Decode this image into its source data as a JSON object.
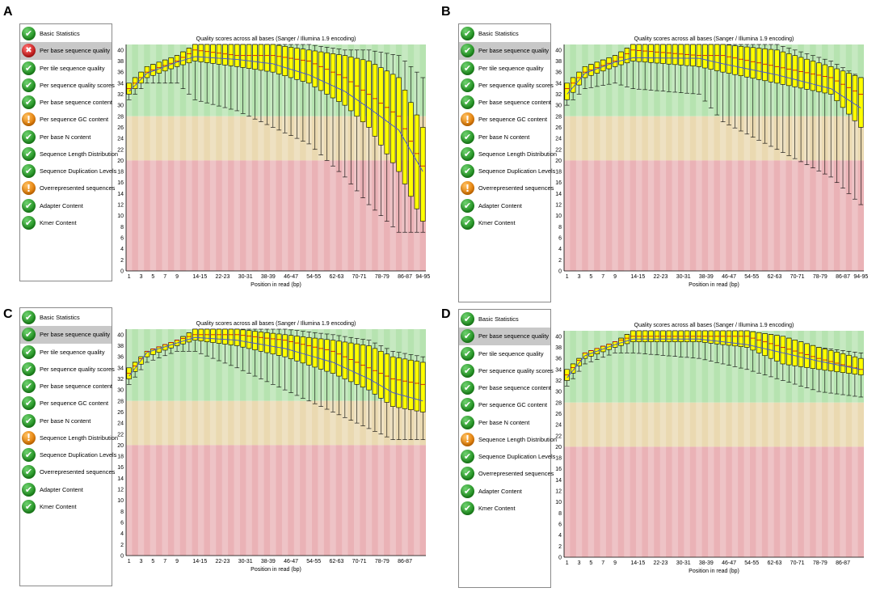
{
  "panels": [
    {
      "letter": "A",
      "modules": [
        {
          "label": "Basic Statistics",
          "status": "pass"
        },
        {
          "label": "Per base sequence quality",
          "status": "fail",
          "selected": true
        },
        {
          "label": "Per tile sequence quality",
          "status": "pass"
        },
        {
          "label": "Per sequence quality scores",
          "status": "pass"
        },
        {
          "label": "Per base sequence content",
          "status": "pass"
        },
        {
          "label": "Per sequence GC content",
          "status": "warn"
        },
        {
          "label": "Per base N content",
          "status": "pass"
        },
        {
          "label": "Sequence Length Distribution",
          "status": "pass"
        },
        {
          "label": "Sequence Duplication Levels",
          "status": "pass"
        },
        {
          "label": "Overrepresented sequences",
          "status": "warn"
        },
        {
          "label": "Adapter Content",
          "status": "pass"
        },
        {
          "label": "Kmer Content",
          "status": "pass"
        }
      ]
    },
    {
      "letter": "B",
      "modules": [
        {
          "label": "Basic Statistics",
          "status": "pass"
        },
        {
          "label": "Per base sequence quality",
          "status": "pass",
          "selected": true
        },
        {
          "label": "Per tile sequence quality",
          "status": "pass"
        },
        {
          "label": "Per sequence quality scores",
          "status": "pass"
        },
        {
          "label": "Per base sequence content",
          "status": "pass"
        },
        {
          "label": "Per sequence GC content",
          "status": "warn"
        },
        {
          "label": "Per base N content",
          "status": "pass"
        },
        {
          "label": "Sequence Length Distribution",
          "status": "pass"
        },
        {
          "label": "Sequence Duplication Levels",
          "status": "pass"
        },
        {
          "label": "Overrepresented sequences",
          "status": "warn"
        },
        {
          "label": "Adapter Content",
          "status": "pass"
        },
        {
          "label": "Kmer Content",
          "status": "pass"
        }
      ]
    },
    {
      "letter": "C",
      "modules": [
        {
          "label": "Basic Statistics",
          "status": "pass"
        },
        {
          "label": "Per base sequence quality",
          "status": "pass",
          "selected": true
        },
        {
          "label": "Per tile sequence quality",
          "status": "pass"
        },
        {
          "label": "Per sequence quality scores",
          "status": "pass"
        },
        {
          "label": "Per base sequence content",
          "status": "pass"
        },
        {
          "label": "Per sequence GC content",
          "status": "pass"
        },
        {
          "label": "Per base N content",
          "status": "pass"
        },
        {
          "label": "Sequence Length Distribution",
          "status": "warn"
        },
        {
          "label": "Sequence Duplication Levels",
          "status": "pass"
        },
        {
          "label": "Overrepresented sequences",
          "status": "pass"
        },
        {
          "label": "Adapter Content",
          "status": "pass"
        },
        {
          "label": "Kmer Content",
          "status": "pass"
        }
      ]
    },
    {
      "letter": "D",
      "modules": [
        {
          "label": "Basic Statistics",
          "status": "pass"
        },
        {
          "label": "Per base sequence quality",
          "status": "pass",
          "selected": true
        },
        {
          "label": "Per tile sequence quality",
          "status": "pass"
        },
        {
          "label": "Per sequence quality scores",
          "status": "pass"
        },
        {
          "label": "Per base sequence content",
          "status": "pass"
        },
        {
          "label": "Per sequence GC content",
          "status": "pass"
        },
        {
          "label": "Per base N content",
          "status": "pass"
        },
        {
          "label": "Sequence Length Distribution",
          "status": "warn"
        },
        {
          "label": "Sequence Duplication Levels",
          "status": "pass"
        },
        {
          "label": "Overrepresented sequences",
          "status": "pass"
        },
        {
          "label": "Adapter Content",
          "status": "pass"
        },
        {
          "label": "Kmer Content",
          "status": "pass"
        }
      ]
    }
  ],
  "status_glyphs": {
    "pass": "✔",
    "warn": "!",
    "fail": "✖"
  },
  "colors": {
    "good_zone": "#b6e3b0",
    "ok_zone": "#ead9b1",
    "poor_zone": "#eab2b6",
    "box_fill": "#ffff00",
    "mean_line": "#4a5bc8",
    "median_mark": "#c80000"
  },
  "chart_data": [
    {
      "type": "boxplot",
      "panel": "A",
      "title": "Quality scores across all bases (Sanger / Illumina 1.9 encoding)",
      "xlabel": "Position in read (bp)",
      "ylim": [
        0,
        41
      ],
      "y_ticks": [
        "0",
        "2",
        "4",
        "6",
        "8",
        "10",
        "12",
        "14",
        "16",
        "18",
        "20",
        "22",
        "24",
        "26",
        "28",
        "30",
        "32",
        "34",
        "36",
        "38",
        "40"
      ],
      "x_tick_labels": [
        "1",
        "3",
        "5",
        "7",
        "9",
        "14-15",
        "22-23",
        "30-31",
        "38-39",
        "46-47",
        "54-55",
        "62-63",
        "70-71",
        "78-79",
        "86-87",
        "94-95"
      ],
      "zones": [
        {
          "from": 28,
          "to": 41,
          "name": "good"
        },
        {
          "from": 20,
          "to": 28,
          "name": "ok"
        },
        {
          "from": 0,
          "to": 20,
          "name": "poor"
        }
      ],
      "keypoints": [
        {
          "pos": 0,
          "q1": 32,
          "median": 33,
          "q3": 34,
          "low": 31,
          "high": 34,
          "mean": 32.5
        },
        {
          "pos": 3,
          "q1": 35,
          "median": 36,
          "q3": 37,
          "low": 34,
          "high": 37,
          "mean": 35.8
        },
        {
          "pos": 8,
          "q1": 37,
          "median": 38,
          "q3": 39,
          "low": 34,
          "high": 39,
          "mean": 37.8
        },
        {
          "pos": 11,
          "q1": 38,
          "median": 40,
          "q3": 41,
          "low": 31,
          "high": 41,
          "mean": 38.8
        },
        {
          "pos": 18,
          "q1": 37,
          "median": 39,
          "q3": 41,
          "low": 29,
          "high": 41,
          "mean": 38.3
        },
        {
          "pos": 24,
          "q1": 36,
          "median": 39,
          "q3": 41,
          "low": 26,
          "high": 41,
          "mean": 37.5
        },
        {
          "pos": 30,
          "q1": 34,
          "median": 38,
          "q3": 40,
          "low": 23,
          "high": 41,
          "mean": 35.5
        },
        {
          "pos": 36,
          "q1": 30,
          "median": 35,
          "q3": 39,
          "low": 17,
          "high": 40,
          "mean": 32.5
        },
        {
          "pos": 40,
          "q1": 26,
          "median": 32,
          "q3": 38,
          "low": 12,
          "high": 40,
          "mean": 29.5
        },
        {
          "pos": 45,
          "q1": 18,
          "median": 28,
          "q3": 35,
          "low": 7,
          "high": 39,
          "mean": 25.5
        },
        {
          "pos": 49,
          "q1": 9,
          "median": 19,
          "q3": 26,
          "low": 7,
          "high": 35,
          "mean": 18
        }
      ]
    },
    {
      "type": "boxplot",
      "panel": "B",
      "title": "Quality scores across all bases (Sanger / Illumina 1.9 encoding)",
      "xlabel": "Position in read (bp)",
      "ylim": [
        0,
        41
      ],
      "y_ticks": [
        "0",
        "2",
        "4",
        "6",
        "8",
        "10",
        "12",
        "14",
        "16",
        "18",
        "20",
        "22",
        "24",
        "26",
        "28",
        "30",
        "32",
        "34",
        "36",
        "38",
        "40"
      ],
      "x_tick_labels": [
        "1",
        "3",
        "5",
        "7",
        "9",
        "14-15",
        "22-23",
        "30-31",
        "38-39",
        "46-47",
        "54-55",
        "62-63",
        "70-71",
        "78-79",
        "86-87",
        "94-95"
      ],
      "zones": [
        {
          "from": 28,
          "to": 41,
          "name": "good"
        },
        {
          "from": 20,
          "to": 28,
          "name": "ok"
        },
        {
          "from": 0,
          "to": 20,
          "name": "poor"
        }
      ],
      "keypoints": [
        {
          "pos": 0,
          "q1": 31,
          "median": 33,
          "q3": 34,
          "low": 30,
          "high": 34,
          "mean": 32
        },
        {
          "pos": 3,
          "q1": 35,
          "median": 36,
          "q3": 37,
          "low": 33,
          "high": 37,
          "mean": 35.8
        },
        {
          "pos": 8,
          "q1": 37,
          "median": 38,
          "q3": 39,
          "low": 34,
          "high": 39,
          "mean": 37.8
        },
        {
          "pos": 11,
          "q1": 38,
          "median": 40,
          "q3": 41,
          "low": 33,
          "high": 41,
          "mean": 38.6
        },
        {
          "pos": 22,
          "q1": 37,
          "median": 39,
          "q3": 41,
          "low": 32,
          "high": 41,
          "mean": 38.5
        },
        {
          "pos": 26,
          "q1": 36,
          "median": 39,
          "q3": 41,
          "low": 27,
          "high": 41,
          "mean": 37.5
        },
        {
          "pos": 35,
          "q1": 34,
          "median": 37,
          "q3": 40,
          "low": 22,
          "high": 41,
          "mean": 35.5
        },
        {
          "pos": 44,
          "q1": 32,
          "median": 35,
          "q3": 37,
          "low": 17,
          "high": 38,
          "mean": 33
        },
        {
          "pos": 49,
          "q1": 26,
          "median": 32,
          "q3": 35,
          "low": 12,
          "high": 35,
          "mean": 29.5
        }
      ]
    },
    {
      "type": "boxplot",
      "panel": "C",
      "title": "Quality scores across all bases (Sanger / Illumina 1.9 encoding)",
      "xlabel": "Position in read (bp)",
      "ylim": [
        0,
        41
      ],
      "y_ticks": [
        "0",
        "2",
        "4",
        "6",
        "8",
        "10",
        "12",
        "14",
        "16",
        "18",
        "20",
        "22",
        "24",
        "26",
        "28",
        "30",
        "32",
        "34",
        "36",
        "38",
        "40"
      ],
      "x_tick_labels": [
        "1",
        "3",
        "5",
        "7",
        "9",
        "14-15",
        "22-23",
        "30-31",
        "38-39",
        "46-47",
        "54-55",
        "62-63",
        "70-71",
        "78-79",
        "86-87"
      ],
      "zones": [
        {
          "from": 28,
          "to": 41,
          "name": "good"
        },
        {
          "from": 20,
          "to": 28,
          "name": "ok"
        },
        {
          "from": 0,
          "to": 20,
          "name": "poor"
        }
      ],
      "keypoints": [
        {
          "pos": 0,
          "q1": 32,
          "median": 33,
          "q3": 34,
          "low": 31,
          "high": 34,
          "mean": 32.5
        },
        {
          "pos": 3,
          "q1": 36,
          "median": 37,
          "q3": 37,
          "low": 35,
          "high": 37,
          "mean": 36.8
        },
        {
          "pos": 8,
          "q1": 38,
          "median": 39,
          "q3": 39,
          "low": 37,
          "high": 39,
          "mean": 38.5
        },
        {
          "pos": 11,
          "q1": 39,
          "median": 40,
          "q3": 41,
          "low": 37,
          "high": 41,
          "mean": 39.5
        },
        {
          "pos": 18,
          "q1": 38,
          "median": 40,
          "q3": 41,
          "low": 34,
          "high": 41,
          "mean": 39
        },
        {
          "pos": 26,
          "q1": 36,
          "median": 39,
          "q3": 40,
          "low": 30,
          "high": 41,
          "mean": 37.5
        },
        {
          "pos": 34,
          "q1": 33,
          "median": 37,
          "q3": 39,
          "low": 26,
          "high": 40,
          "mean": 35
        },
        {
          "pos": 40,
          "q1": 30,
          "median": 34,
          "q3": 38,
          "low": 23,
          "high": 39,
          "mean": 32
        },
        {
          "pos": 44,
          "q1": 27,
          "median": 32,
          "q3": 36,
          "low": 21,
          "high": 37,
          "mean": 29.5
        },
        {
          "pos": 49,
          "q1": 26,
          "median": 31,
          "q3": 35,
          "low": 21,
          "high": 36,
          "mean": 28
        }
      ]
    },
    {
      "type": "boxplot",
      "panel": "D",
      "title": "Quality scores across all bases (Sanger / Illumina 1.9 encoding)",
      "xlabel": "Position in read (bp)",
      "ylim": [
        0,
        41
      ],
      "y_ticks": [
        "0",
        "2",
        "4",
        "6",
        "8",
        "10",
        "12",
        "14",
        "16",
        "18",
        "20",
        "22",
        "24",
        "26",
        "28",
        "30",
        "32",
        "34",
        "36",
        "38",
        "40"
      ],
      "x_tick_labels": [
        "1",
        "3",
        "5",
        "7",
        "9",
        "14-15",
        "22-23",
        "30-31",
        "38-39",
        "46-47",
        "54-55",
        "62-63",
        "70-71",
        "78-79",
        "86-87"
      ],
      "zones": [
        {
          "from": 28,
          "to": 41,
          "name": "good"
        },
        {
          "from": 20,
          "to": 28,
          "name": "ok"
        },
        {
          "from": 0,
          "to": 20,
          "name": "poor"
        }
      ],
      "keypoints": [
        {
          "pos": 0,
          "q1": 32,
          "median": 33,
          "q3": 34,
          "low": 31,
          "high": 34,
          "mean": 32.5
        },
        {
          "pos": 3,
          "q1": 36,
          "median": 37,
          "q3": 37,
          "low": 35,
          "high": 37,
          "mean": 36.5
        },
        {
          "pos": 8,
          "q1": 38,
          "median": 39,
          "q3": 39,
          "low": 37,
          "high": 39,
          "mean": 38.5
        },
        {
          "pos": 11,
          "q1": 39,
          "median": 40,
          "q3": 41,
          "low": 37,
          "high": 41,
          "mean": 39.5
        },
        {
          "pos": 22,
          "q1": 39,
          "median": 40,
          "q3": 41,
          "low": 36,
          "high": 41,
          "mean": 39.5
        },
        {
          "pos": 30,
          "q1": 38,
          "median": 40,
          "q3": 41,
          "low": 34,
          "high": 41,
          "mean": 38.5
        },
        {
          "pos": 36,
          "q1": 35,
          "median": 38,
          "q3": 40,
          "low": 32,
          "high": 40,
          "mean": 37
        },
        {
          "pos": 42,
          "q1": 34,
          "median": 36,
          "q3": 38,
          "low": 30,
          "high": 38,
          "mean": 35.5
        },
        {
          "pos": 49,
          "q1": 33,
          "median": 34,
          "q3": 36,
          "low": 29,
          "high": 37,
          "mean": 34
        }
      ]
    }
  ]
}
